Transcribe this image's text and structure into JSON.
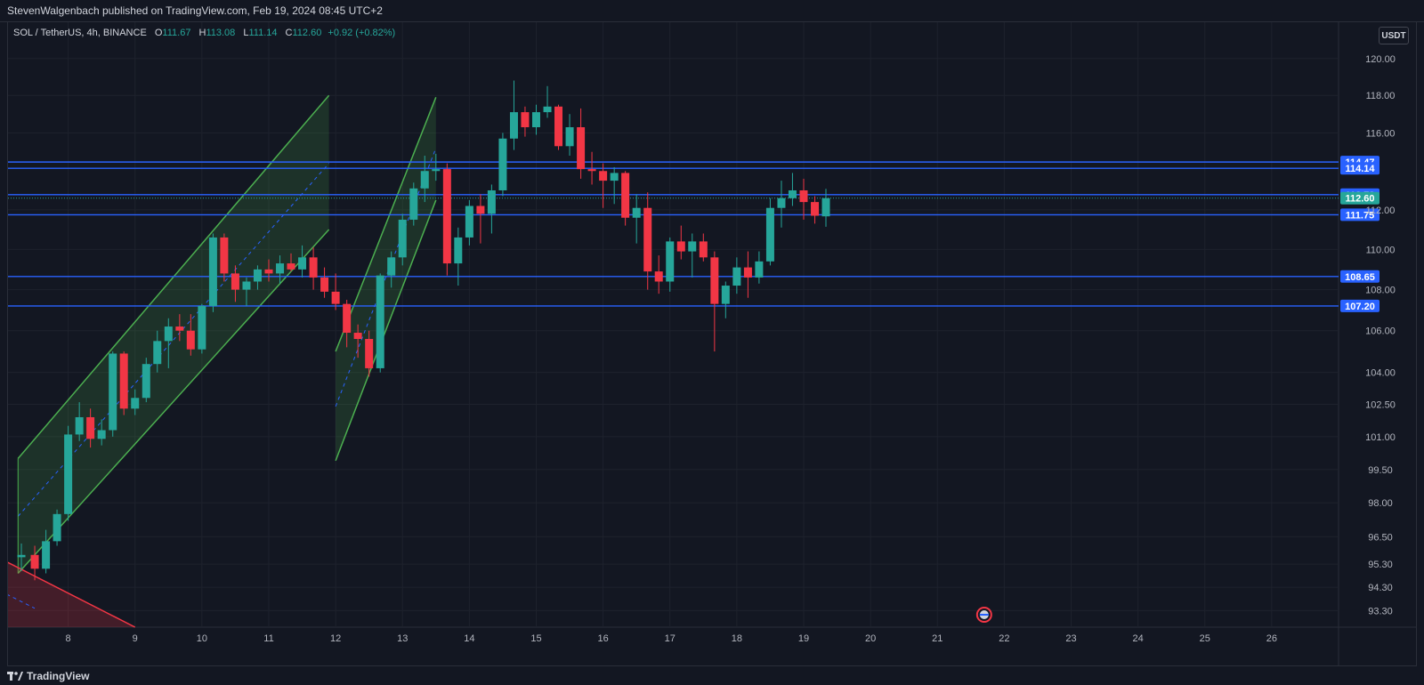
{
  "header": {
    "publisher_line": "StevenWalgenbach published on TradingView.com, Feb 19, 2024 08:45 UTC+2"
  },
  "legend": {
    "symbol": "SOL / TetherUS, 4h, BINANCE",
    "open_label": "O",
    "open": "111.67",
    "high_label": "H",
    "high": "113.08",
    "low_label": "L",
    "low": "111.14",
    "close_label": "C",
    "close": "112.60",
    "change": "+0.92 (+0.82%)"
  },
  "currency_button": "USDT",
  "footer": {
    "brand": "TradingView"
  },
  "colors": {
    "background": "#131722",
    "grid": "#1e222d",
    "up": "#26a69a",
    "down": "#f23645",
    "level_line": "#2962ff",
    "channel": "#4caf50",
    "channel_fill": "rgba(76,175,80,0.18)",
    "wedge": "#f23645"
  },
  "chart_data": {
    "type": "candlestick",
    "y_scale": "log",
    "y_ticks": [
      "120.00",
      "118.00",
      "116.00",
      "112.00",
      "110.00",
      "108.00",
      "106.00",
      "104.00",
      "102.50",
      "101.00",
      "99.50",
      "98.00",
      "96.50",
      "95.30",
      "94.30",
      "93.30"
    ],
    "x_ticks": [
      "8",
      "9",
      "10",
      "11",
      "12",
      "13",
      "14",
      "15",
      "16",
      "17",
      "18",
      "19",
      "20",
      "21",
      "22",
      "23",
      "24",
      "25",
      "26"
    ],
    "x_range_days": [
      7.1,
      27.0
    ],
    "y_range": [
      92.6,
      122.0
    ],
    "price_levels": [
      {
        "label": "114.47",
        "value": 114.47,
        "badge_color": "#2962ff"
      },
      {
        "label": "114.14",
        "value": 114.14,
        "badge_color": "#2962ff"
      },
      {
        "label": "112.78",
        "value": 112.78,
        "badge_color": "#2962ff"
      },
      {
        "label": "112.60",
        "value": 112.6,
        "badge_color": "#26a69a"
      },
      {
        "label": "111.75",
        "value": 111.75,
        "badge_color": "#2962ff"
      },
      {
        "label": "108.65",
        "value": 108.65,
        "badge_color": "#2962ff"
      },
      {
        "label": "107.20",
        "value": 107.2,
        "badge_color": "#2962ff"
      }
    ],
    "candles": [
      {
        "t": 7.3,
        "o": 95.6,
        "h": 96.2,
        "l": 95.0,
        "c": 95.7
      },
      {
        "t": 7.5,
        "o": 95.7,
        "h": 96.1,
        "l": 94.6,
        "c": 95.1
      },
      {
        "t": 7.667,
        "o": 95.1,
        "h": 96.8,
        "l": 94.9,
        "c": 96.3
      },
      {
        "t": 7.833,
        "o": 96.3,
        "h": 97.7,
        "l": 96.1,
        "c": 97.5
      },
      {
        "t": 8.0,
        "o": 97.5,
        "h": 101.5,
        "l": 97.2,
        "c": 101.1
      },
      {
        "t": 8.167,
        "o": 101.1,
        "h": 102.6,
        "l": 100.8,
        "c": 101.9
      },
      {
        "t": 8.333,
        "o": 101.9,
        "h": 102.3,
        "l": 100.5,
        "c": 100.9
      },
      {
        "t": 8.5,
        "o": 100.9,
        "h": 101.8,
        "l": 100.6,
        "c": 101.3
      },
      {
        "t": 8.667,
        "o": 101.3,
        "h": 105.0,
        "l": 101.0,
        "c": 104.9
      },
      {
        "t": 8.833,
        "o": 104.9,
        "h": 105.0,
        "l": 102.0,
        "c": 102.3
      },
      {
        "t": 9.0,
        "o": 102.3,
        "h": 103.2,
        "l": 102.0,
        "c": 102.8
      },
      {
        "t": 9.167,
        "o": 102.8,
        "h": 104.7,
        "l": 102.6,
        "c": 104.4
      },
      {
        "t": 9.333,
        "o": 104.4,
        "h": 106.0,
        "l": 104.0,
        "c": 105.5
      },
      {
        "t": 9.5,
        "o": 105.5,
        "h": 106.6,
        "l": 104.2,
        "c": 106.2
      },
      {
        "t": 9.667,
        "o": 106.2,
        "h": 106.8,
        "l": 105.5,
        "c": 106.0
      },
      {
        "t": 9.833,
        "o": 106.0,
        "h": 106.8,
        "l": 104.8,
        "c": 105.1
      },
      {
        "t": 10.0,
        "o": 105.1,
        "h": 107.3,
        "l": 104.9,
        "c": 107.2
      },
      {
        "t": 10.167,
        "o": 107.2,
        "h": 110.8,
        "l": 106.9,
        "c": 110.6
      },
      {
        "t": 10.333,
        "o": 110.6,
        "h": 110.8,
        "l": 108.4,
        "c": 108.8
      },
      {
        "t": 10.5,
        "o": 108.8,
        "h": 109.2,
        "l": 107.4,
        "c": 108.0
      },
      {
        "t": 10.667,
        "o": 108.0,
        "h": 108.6,
        "l": 107.2,
        "c": 108.4
      },
      {
        "t": 10.833,
        "o": 108.4,
        "h": 109.2,
        "l": 108.0,
        "c": 109.0
      },
      {
        "t": 11.0,
        "o": 109.0,
        "h": 109.5,
        "l": 108.4,
        "c": 108.8
      },
      {
        "t": 11.167,
        "o": 108.8,
        "h": 109.7,
        "l": 108.3,
        "c": 109.3
      },
      {
        "t": 11.333,
        "o": 109.3,
        "h": 109.8,
        "l": 108.9,
        "c": 109.0
      },
      {
        "t": 11.5,
        "o": 109.0,
        "h": 110.2,
        "l": 108.6,
        "c": 109.6
      },
      {
        "t": 11.667,
        "o": 109.6,
        "h": 110.1,
        "l": 108.0,
        "c": 108.6
      },
      {
        "t": 11.833,
        "o": 108.6,
        "h": 109.1,
        "l": 107.6,
        "c": 107.9
      },
      {
        "t": 12.0,
        "o": 107.9,
        "h": 108.8,
        "l": 107.0,
        "c": 107.3
      },
      {
        "t": 12.167,
        "o": 107.3,
        "h": 107.5,
        "l": 105.2,
        "c": 105.9
      },
      {
        "t": 12.333,
        "o": 105.9,
        "h": 106.3,
        "l": 104.7,
        "c": 105.6
      },
      {
        "t": 12.5,
        "o": 105.6,
        "h": 106.0,
        "l": 103.8,
        "c": 104.2
      },
      {
        "t": 12.667,
        "o": 104.2,
        "h": 108.8,
        "l": 104.0,
        "c": 108.7
      },
      {
        "t": 12.833,
        "o": 108.7,
        "h": 109.9,
        "l": 108.1,
        "c": 109.6
      },
      {
        "t": 13.0,
        "o": 109.6,
        "h": 111.8,
        "l": 109.2,
        "c": 111.5
      },
      {
        "t": 13.167,
        "o": 111.5,
        "h": 113.4,
        "l": 111.2,
        "c": 113.1
      },
      {
        "t": 13.333,
        "o": 113.1,
        "h": 114.8,
        "l": 112.4,
        "c": 114.0
      },
      {
        "t": 13.5,
        "o": 114.0,
        "h": 114.9,
        "l": 113.5,
        "c": 114.1
      },
      {
        "t": 13.667,
        "o": 114.1,
        "h": 114.4,
        "l": 108.7,
        "c": 109.3
      },
      {
        "t": 13.833,
        "o": 109.3,
        "h": 111.1,
        "l": 108.2,
        "c": 110.6
      },
      {
        "t": 14.0,
        "o": 110.6,
        "h": 112.5,
        "l": 110.2,
        "c": 112.2
      },
      {
        "t": 14.167,
        "o": 112.2,
        "h": 112.8,
        "l": 110.3,
        "c": 111.8
      },
      {
        "t": 14.333,
        "o": 111.8,
        "h": 113.3,
        "l": 110.8,
        "c": 113.0
      },
      {
        "t": 14.5,
        "o": 113.0,
        "h": 116.0,
        "l": 112.7,
        "c": 115.7
      },
      {
        "t": 14.667,
        "o": 115.7,
        "h": 118.8,
        "l": 115.1,
        "c": 117.1
      },
      {
        "t": 14.833,
        "o": 117.1,
        "h": 117.4,
        "l": 115.8,
        "c": 116.3
      },
      {
        "t": 15.0,
        "o": 116.3,
        "h": 117.5,
        "l": 115.9,
        "c": 117.1
      },
      {
        "t": 15.167,
        "o": 117.1,
        "h": 118.5,
        "l": 116.8,
        "c": 117.4
      },
      {
        "t": 15.333,
        "o": 117.4,
        "h": 117.5,
        "l": 115.1,
        "c": 115.3
      },
      {
        "t": 15.5,
        "o": 115.3,
        "h": 117.0,
        "l": 114.8,
        "c": 116.3
      },
      {
        "t": 15.667,
        "o": 116.3,
        "h": 117.3,
        "l": 113.6,
        "c": 114.1
      },
      {
        "t": 15.833,
        "o": 114.1,
        "h": 115.0,
        "l": 113.3,
        "c": 114.0
      },
      {
        "t": 16.0,
        "o": 114.0,
        "h": 114.4,
        "l": 112.1,
        "c": 113.5
      },
      {
        "t": 16.167,
        "o": 113.5,
        "h": 114.2,
        "l": 112.3,
        "c": 113.9
      },
      {
        "t": 16.333,
        "o": 113.9,
        "h": 114.0,
        "l": 111.2,
        "c": 111.6
      },
      {
        "t": 16.5,
        "o": 111.6,
        "h": 112.8,
        "l": 110.3,
        "c": 112.1
      },
      {
        "t": 16.667,
        "o": 112.1,
        "h": 112.9,
        "l": 108.0,
        "c": 108.9
      },
      {
        "t": 16.833,
        "o": 108.9,
        "h": 109.7,
        "l": 107.8,
        "c": 108.4
      },
      {
        "t": 17.0,
        "o": 108.4,
        "h": 110.6,
        "l": 107.9,
        "c": 110.4
      },
      {
        "t": 17.167,
        "o": 110.4,
        "h": 111.2,
        "l": 109.5,
        "c": 109.9
      },
      {
        "t": 17.333,
        "o": 109.9,
        "h": 110.8,
        "l": 108.6,
        "c": 110.4
      },
      {
        "t": 17.5,
        "o": 110.4,
        "h": 110.8,
        "l": 109.4,
        "c": 109.6
      },
      {
        "t": 17.667,
        "o": 109.6,
        "h": 109.9,
        "l": 105.0,
        "c": 107.3
      },
      {
        "t": 17.833,
        "o": 107.3,
        "h": 108.4,
        "l": 106.6,
        "c": 108.2
      },
      {
        "t": 18.0,
        "o": 108.2,
        "h": 109.6,
        "l": 107.8,
        "c": 109.1
      },
      {
        "t": 18.167,
        "o": 109.1,
        "h": 109.9,
        "l": 107.6,
        "c": 108.6
      },
      {
        "t": 18.333,
        "o": 108.6,
        "h": 109.9,
        "l": 108.3,
        "c": 109.4
      },
      {
        "t": 18.5,
        "o": 109.4,
        "h": 112.6,
        "l": 109.2,
        "c": 112.1
      },
      {
        "t": 18.667,
        "o": 112.1,
        "h": 113.5,
        "l": 111.1,
        "c": 112.6
      },
      {
        "t": 18.833,
        "o": 112.6,
        "h": 113.9,
        "l": 112.2,
        "c": 113.0
      },
      {
        "t": 19.0,
        "o": 113.0,
        "h": 113.6,
        "l": 111.5,
        "c": 112.4
      },
      {
        "t": 19.167,
        "o": 112.4,
        "h": 112.7,
        "l": 111.3,
        "c": 111.7
      },
      {
        "t": 19.333,
        "o": 111.67,
        "h": 113.08,
        "l": 111.14,
        "c": 112.6
      }
    ],
    "drawings": {
      "channels": [
        {
          "upper": [
            [
              7.25,
              100.0
            ],
            [
              11.9,
              118.0
            ]
          ],
          "lower": [
            [
              7.25,
              94.9
            ],
            [
              11.9,
              111.0
            ]
          ],
          "mid": [
            [
              7.25,
              97.4
            ],
            [
              11.9,
              114.4
            ]
          ]
        },
        {
          "upper": [
            [
              12.0,
              105.0
            ],
            [
              13.5,
              117.9
            ]
          ],
          "lower": [
            [
              12.0,
              99.9
            ],
            [
              13.5,
              112.5
            ]
          ],
          "mid": [
            [
              12.0,
              102.4
            ],
            [
              13.5,
              115.2
            ]
          ]
        }
      ],
      "wedge": {
        "top": [
          [
            7.08,
            97.4
          ],
          [
            7.08,
            95.4
          ]
        ],
        "line": [
          [
            7.08,
            95.4
          ],
          [
            9.0,
            92.6
          ]
        ]
      },
      "event_marker_day": 21.7
    }
  }
}
